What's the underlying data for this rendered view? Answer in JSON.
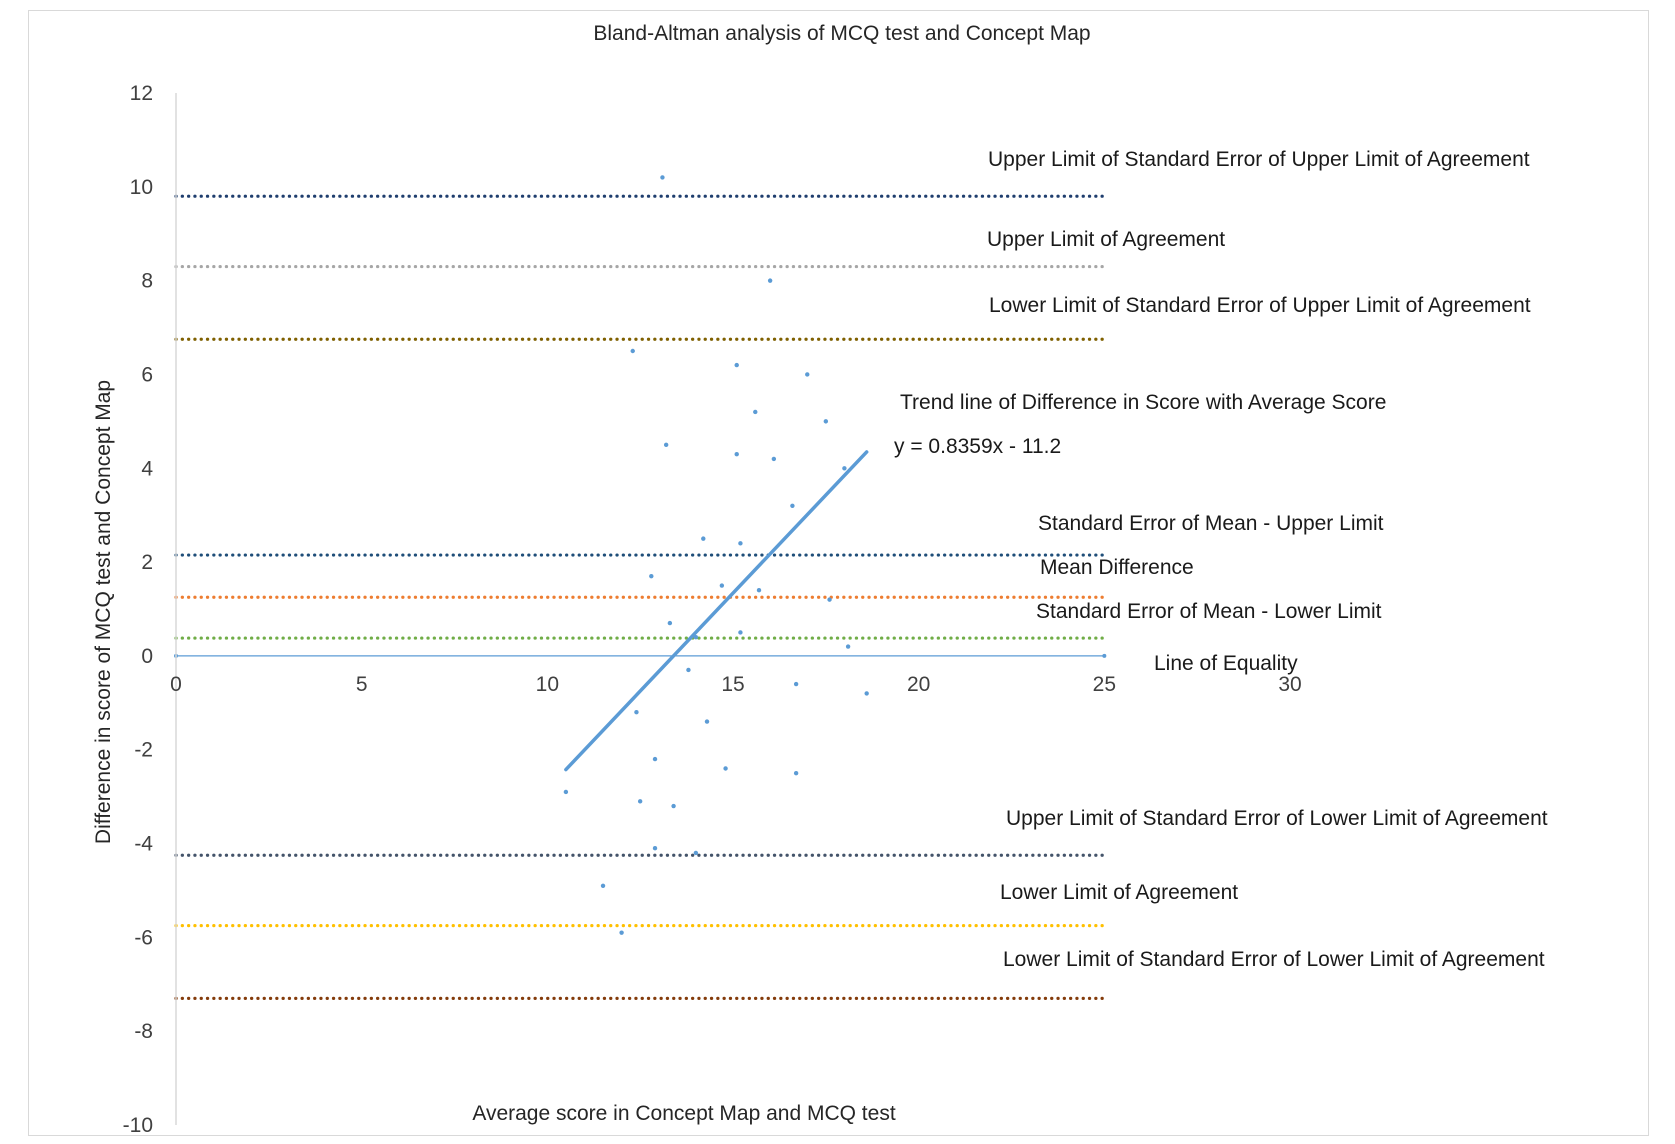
{
  "chart_data": {
    "type": "scatter",
    "title": "Bland-Altman analysis of MCQ test and Concept Map",
    "xlabel": "Average score in Concept Map and MCQ test",
    "ylabel": "Difference in score of MCQ test and Concept Map",
    "xlim": [
      0,
      30
    ],
    "ylim": [
      -10,
      12
    ],
    "x_ticks": [
      0,
      5,
      10,
      15,
      20,
      25,
      30
    ],
    "y_ticks": [
      12,
      10,
      8,
      6,
      4,
      2,
      0,
      -2,
      -4,
      -6,
      -8,
      -10
    ],
    "grid": false,
    "points": {
      "color": "#5b9bd5",
      "x": [
        13.1,
        16.0,
        12.3,
        15.1,
        17.0,
        15.6,
        17.5,
        13.2,
        15.1,
        16.1,
        18.0,
        16.6,
        14.2,
        15.2,
        12.8,
        14.7,
        15.7,
        17.6,
        13.3,
        14.0,
        15.2,
        13.8,
        18.1,
        16.7,
        18.6,
        12.4,
        14.3,
        12.9,
        14.8,
        16.7,
        10.5,
        12.5,
        13.4,
        12.9,
        14.0,
        11.5,
        12.0
      ],
      "y": [
        10.2,
        8.0,
        6.5,
        6.2,
        6.0,
        5.2,
        5.0,
        4.5,
        4.3,
        4.2,
        4.0,
        3.2,
        2.5,
        2.4,
        1.7,
        1.5,
        1.4,
        1.2,
        0.7,
        0.4,
        0.5,
        -0.3,
        0.2,
        -0.6,
        -0.8,
        -1.2,
        -1.4,
        -2.2,
        -2.4,
        -2.5,
        -2.9,
        -3.1,
        -3.2,
        -4.1,
        -4.2,
        -4.9,
        -5.9
      ]
    },
    "reference_lines": [
      {
        "label": "Upper Limit of Standard Error of Upper Limit of Agreement",
        "y": 9.8,
        "color": "#1f3e6e"
      },
      {
        "label": "Upper Limit of Agreement",
        "y": 8.3,
        "color": "#a6a6a6"
      },
      {
        "label": "Lower Limit of Standard Error of Upper Limit of Agreement",
        "y": 6.75,
        "color": "#7f6000"
      },
      {
        "label": "Standard Error of Mean - Upper Limit",
        "y": 2.15,
        "color": "#1f4e79"
      },
      {
        "label": "Mean Difference",
        "y": 1.25,
        "color": "#ed7d31"
      },
      {
        "label": "Standard Error of Mean - Lower Limit",
        "y": 0.38,
        "color": "#70ad47"
      },
      {
        "label": "Upper Limit of Standard Error of Lower Limit of Agreement",
        "y": -4.25,
        "color": "#44546a"
      },
      {
        "label": "Lower Limit of Agreement",
        "y": -5.75,
        "color": "#ffc000"
      },
      {
        "label": "Lower Limit of Standard Error of Lower Limit of Agreement",
        "y": -7.3,
        "color": "#843c0c"
      }
    ],
    "line_of_equality": {
      "label": "Line of Equality",
      "y": 0,
      "x_range": [
        0,
        25
      ],
      "color": "#5b9bd5"
    },
    "trendline": {
      "label": "Trend line of Difference  in Score with Average Score",
      "equation": "y = 0.8359x - 11.2",
      "slope": 0.8359,
      "intercept": -11.2,
      "x_range": [
        10.5,
        18.6
      ],
      "color": "#5b9bd5"
    }
  }
}
